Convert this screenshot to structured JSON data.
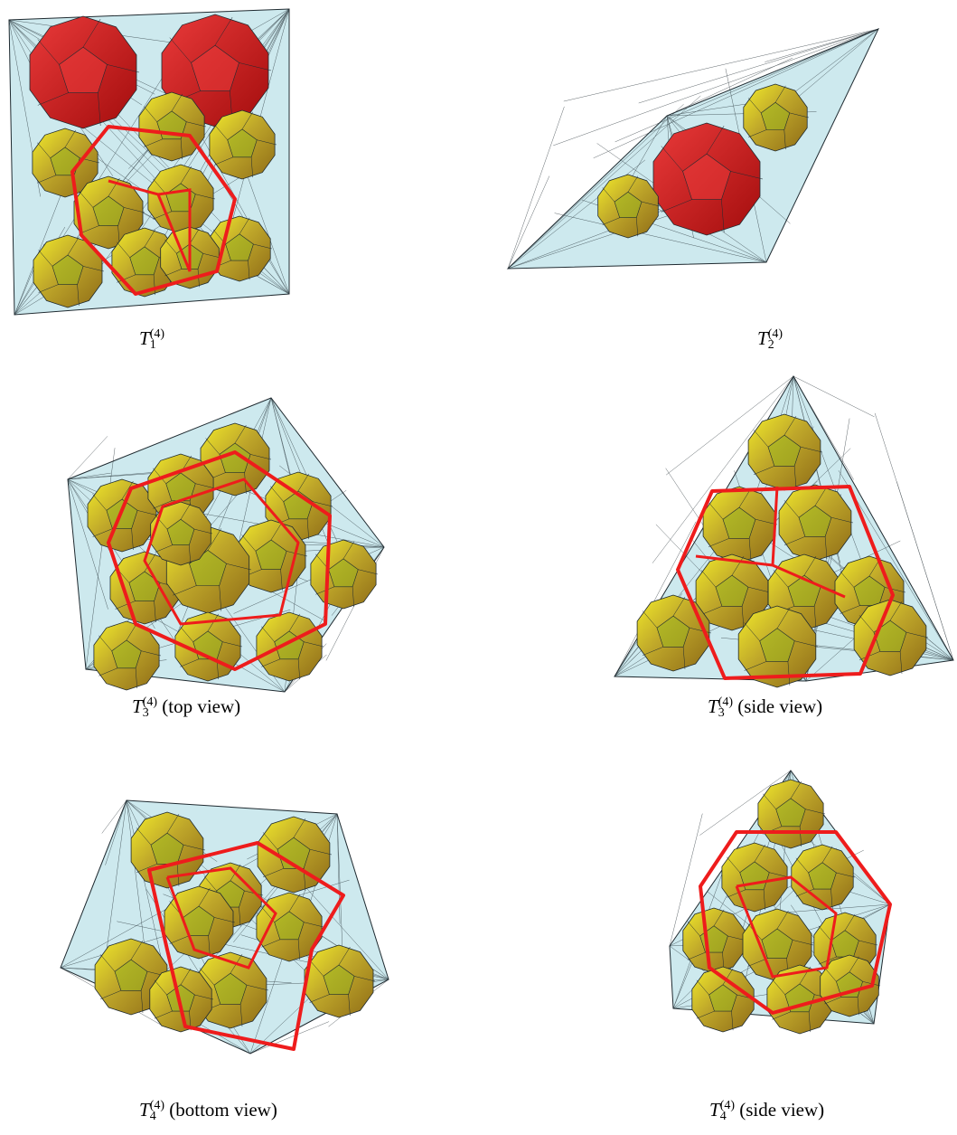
{
  "figures": [
    {
      "symbol": "T",
      "index": "1",
      "superscript": "(4)",
      "suffix": ""
    },
    {
      "symbol": "T",
      "index": "2",
      "superscript": "(4)",
      "suffix": ""
    },
    {
      "symbol": "T",
      "index": "3",
      "superscript": "(4)",
      "suffix": "(top view)"
    },
    {
      "symbol": "T",
      "index": "3",
      "superscript": "(4)",
      "suffix": "(side view)"
    },
    {
      "symbol": "T",
      "index": "4",
      "superscript": "(4)",
      "suffix": "(bottom view)"
    },
    {
      "symbol": "T",
      "index": "4",
      "superscript": "(4)",
      "suffix": "(side view)"
    }
  ],
  "colors": {
    "hull_fill": "#cde9ee",
    "mesh_line": "#1f2a30",
    "cell_outline": "#ee1c1c",
    "small_ball_light": "#f3ec2a",
    "small_ball_mid": "#bfa72a",
    "small_ball_dark": "#8f6c17",
    "small_ball_green": "#9ab51f",
    "large_ball_light": "#ea3a3a",
    "large_ball_dark": "#a30d0d"
  }
}
